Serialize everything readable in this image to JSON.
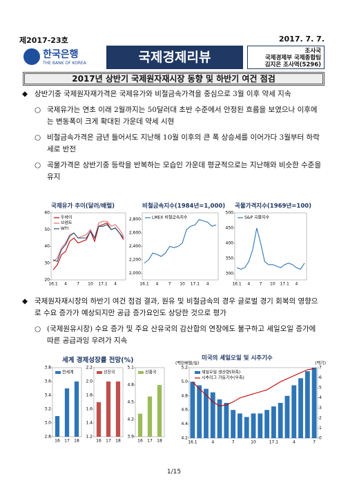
{
  "header": {
    "number": "제2017-23호",
    "date": "2017. 7. 7.",
    "bank_name": "한국은행",
    "bank_name_en": "THE BANK OF KOREA",
    "review_title": "국제경제리뷰",
    "dept": "조사국",
    "team": "국제경제부 국제종합팀",
    "author": "김지은 조사역(5296)"
  },
  "title": "2017년 상반기 국제원자재시장 동향 및 하반기 여건 점검",
  "sections": [
    {
      "summary": "상반기중 국제원자재가격은 국제유가와 비철금속가격을 중심으로 3월 이후 약세 지속",
      "points": [
        "국제유가는 연초 이래 2월까지는 50달러대 초반 수준에서 안정된 흐름을 보였으나 이후에는 변동폭이 크게 확대된 가운데 약세 시현",
        "비철금속가격은 금년 들어서도 지난해 10월 이후의 큰 폭 상승세를 이어가다 3월부터 하락세로 반전",
        "곡물가격은 상반기중 등락을 반복하는 모습인 가운데 평균적으로는 지난해와 비슷한 수준을 유지"
      ]
    },
    {
      "summary": "국제원자재시장의 하반기 여건 점검 결과, 원유 및 비철금속의 경우 글로벌 경기 회복의 영향으로 수요 증가가 예상되지만 공급 증가요인도 상당한 것으로 평가",
      "points": [
        "(국제원유시장) 수요 증가 및 주요 산유국의 감산합의 연장에도 불구하고 셰일오일 증가에 따른 공급과잉 우려가 지속"
      ]
    }
  ],
  "growth_chart_title": "세계 경제성장률 전망(%)",
  "chart_data": [
    {
      "type": "line",
      "title": "국제유가 추이(달러/배럴)",
      "categories": [
        "16.1",
        null,
        null,
        "4",
        null,
        null,
        "7",
        null,
        null,
        "10",
        null,
        null,
        "17.1",
        null,
        null,
        "4",
        null,
        null
      ],
      "series": [
        {
          "name": "두바이",
          "color": "#c00000",
          "values": [
            26,
            29,
            35,
            37,
            43,
            45,
            42,
            43,
            44,
            49,
            43,
            52,
            53,
            54,
            50,
            51,
            48,
            44
          ]
        },
        {
          "name": "브렌트",
          "color": "#e26b6b",
          "values": [
            31,
            33,
            39,
            42,
            47,
            48,
            45,
            46,
            47,
            50,
            45,
            54,
            55,
            55,
            52,
            53,
            50,
            46
          ]
        },
        {
          "name": "WTI",
          "color": "#1f4e79",
          "values": [
            32,
            31,
            38,
            41,
            46,
            48,
            45,
            45,
            45,
            49,
            45,
            52,
            52,
            53,
            50,
            51,
            48,
            45
          ]
        }
      ],
      "ylim": [
        20,
        60
      ],
      "yticks": [
        20,
        30,
        40,
        50,
        60
      ]
    },
    {
      "type": "line",
      "title": "비철금속지수(1984년=1,000)",
      "categories": [
        "16.1",
        null,
        null,
        "4",
        null,
        null,
        "7",
        null,
        null,
        "10",
        null,
        null,
        "17.1",
        null,
        null,
        "4",
        null,
        null
      ],
      "series": [
        {
          "name": "LMEX 비철금속지수",
          "color": "#2e75b6",
          "values": [
            2150,
            2200,
            2300,
            2280,
            2250,
            2300,
            2400,
            2380,
            2400,
            2450,
            2650,
            2700,
            2720,
            2800,
            2780,
            2760,
            2700,
            2720
          ]
        }
      ],
      "ylim": [
        1900,
        2900
      ],
      "yticks": [
        {
          "value": 2000,
          "label": "2,000"
        },
        {
          "value": 2200,
          "label": "2,200"
        },
        {
          "value": 2400,
          "label": "2,400"
        },
        {
          "value": 2600,
          "label": "2,600"
        },
        {
          "value": 2800,
          "label": "2,800"
        }
      ]
    },
    {
      "type": "line",
      "title": "곡물가격지수(1969년=100)",
      "categories": [
        "16.1",
        null,
        null,
        "4",
        null,
        null,
        "7",
        null,
        null,
        "10",
        null,
        null,
        "17.1",
        null,
        null,
        "4",
        null,
        null
      ],
      "series": [
        {
          "name": "S&P 곡물지수",
          "color": "#2e75b6",
          "values": [
            320,
            315,
            320,
            340,
            380,
            450,
            400,
            340,
            330,
            330,
            325,
            320,
            330,
            335,
            330,
            320,
            315,
            335
          ]
        }
      ],
      "ylim": [
        280,
        500
      ],
      "yticks": [
        300,
        350,
        400,
        450,
        500
      ]
    },
    {
      "type": "bar",
      "categories": [
        "16",
        "17",
        "18"
      ],
      "series": [
        {
          "name": "전세계",
          "color": "#2e75b6",
          "values": [
            3.1,
            3.5,
            3.6
          ]
        }
      ],
      "ylim": [
        2.8,
        3.8
      ],
      "yticks": [
        2.8,
        {
          "value": 3,
          "label": "3.0"
        },
        3.2,
        3.4,
        3.6,
        3.8
      ]
    },
    {
      "type": "bar",
      "categories": [
        "16",
        "17",
        "18"
      ],
      "series": [
        {
          "name": "선진국",
          "color": "#c0504d",
          "values": [
            1.7,
            2.0,
            2.0
          ]
        }
      ],
      "ylim": [
        1.2,
        2.2
      ],
      "yticks": [
        1.2,
        1.4,
        1.6,
        1.8,
        {
          "value": 2,
          "label": "2.0"
        },
        2.2
      ]
    },
    {
      "type": "bar",
      "categories": [
        "16",
        "17",
        "18"
      ],
      "series": [
        {
          "name": "신흥국",
          "color": "#9bbb59",
          "values": [
            4.3,
            4.6,
            4.8
          ]
        }
      ],
      "ylim": [
        3.9,
        5.1
      ],
      "yticks": [
        3.9,
        4.2,
        4.5,
        4.8,
        5.1
      ]
    },
    {
      "type": "combo",
      "title": "미국의 셰일오일 및 시추기수",
      "y_unit": "(백만배럴/일)",
      "y2_unit": "(백기)",
      "categories": [
        "16.1",
        null,
        null,
        "4",
        null,
        null,
        "7",
        null,
        null,
        "10",
        null,
        null,
        "17.1",
        null,
        null,
        "4",
        null,
        null,
        "7"
      ],
      "series": [
        {
          "name": "셰일오일 생산량(좌축)",
          "color": "#2e75b6",
          "kind": "bar",
          "values": [
            5.0,
            4.95,
            4.9,
            4.85,
            4.75,
            4.7,
            4.6,
            4.55,
            4.5,
            4.55,
            4.55,
            4.6,
            4.65,
            4.7,
            4.8,
            4.95,
            5.05,
            5.15,
            5.2
          ]
        },
        {
          "name": "시추리그 가동기수(우축)",
          "color": "#c00000",
          "kind": "line",
          "axis": "y2",
          "values": [
            5.6,
            4.9,
            4.3,
            3.6,
            3.2,
            3.3,
            3.6,
            4.0,
            4.2,
            4.4,
            4.6,
            4.8,
            5.2,
            5.6,
            5.9,
            6.2,
            6.5,
            6.8,
            6.9
          ]
        }
      ],
      "ylim": [
        4.2,
        5.2
      ],
      "yticks": [
        4.2,
        4.4,
        4.6,
        4.8,
        {
          "value": 5,
          "label": "5.0"
        },
        5.2
      ],
      "y2lim": [
        0,
        7
      ],
      "y2ticks": [
        0,
        1,
        2,
        3,
        4,
        5,
        6,
        7
      ]
    }
  ],
  "footer": "1/15"
}
